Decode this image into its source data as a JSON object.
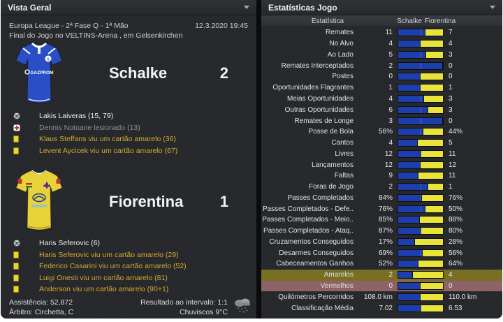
{
  "left_panel": {
    "title": "Vista Geral",
    "competition": "Europa League - 2ª Fase Q - 1ª Mão",
    "datetime": "12.3.2020 19:45",
    "venue_line": "Final do Jogo no VELTINS-Arena , em Gelsenkirchen",
    "home": {
      "name": "Schalke",
      "score": "2",
      "shirt": {
        "body_color": "#2a4fc4",
        "trim_color": "#ffffff",
        "sponsor": "GAZPROM",
        "crest": "schalke-crest"
      },
      "events": [
        {
          "icon": "goal",
          "style": "goal",
          "text": "Lakis Laiveras (15, 79)"
        },
        {
          "icon": "injury",
          "style": "injury",
          "text": "Dennis Notoane lesionado (13)"
        },
        {
          "icon": "yellow-card",
          "style": "card",
          "text": "Klaus Steffans viu um cartão amarelo (36)"
        },
        {
          "icon": "yellow-card",
          "style": "card",
          "text": "Levent Aycicek viu um cartão amarelo (67)"
        }
      ]
    },
    "away": {
      "name": "Fiorentina",
      "score": "1",
      "shirt": {
        "body_color": "#e8d23a",
        "trim_color": "#ffffff",
        "sponsor": "Mazda",
        "crest": "fiorentina-fleur"
      },
      "events": [
        {
          "icon": "goal",
          "style": "goal",
          "text": "Haris Seferovic (6)"
        },
        {
          "icon": "yellow-card",
          "style": "card",
          "text": "Haris Seferovic viu um cartão amarelo (29)"
        },
        {
          "icon": "yellow-card",
          "style": "card",
          "text": "Federico Casarini viu um cartão amarelo (52)"
        },
        {
          "icon": "yellow-card",
          "style": "card",
          "text": "Luigi Onesti viu um cartão amarelo (81)"
        },
        {
          "icon": "yellow-card",
          "style": "card",
          "text": "Anderson viu um cartão amarelo (90+1)"
        }
      ]
    },
    "footer": {
      "left_lines": [
        "Assistência: 52,872",
        "Árbitro: Circhetta, C"
      ],
      "right_lines": [
        "Resultado ao intervalo: 1:1",
        "Chuviscos 9°C"
      ],
      "weather_icon": "rain-cloud-icon"
    }
  },
  "right_panel": {
    "title": "Estatísticas Jogo",
    "colors": {
      "home_bar": "#1d3fae",
      "away_bar": "#e9e43a",
      "yellow_row": "#786f22",
      "red_row": "#8e6367"
    },
    "table": {
      "headers": [
        "Estatística",
        "Schalke",
        "Fiorentina"
      ],
      "rows": [
        {
          "label": "Remates",
          "home": "11",
          "away": "7"
        },
        {
          "label": "No Alvo",
          "home": "4",
          "away": "4"
        },
        {
          "label": "Ao Lado",
          "home": "5",
          "away": "3"
        },
        {
          "label": "Remates Interceptados",
          "home": "2",
          "away": "0"
        },
        {
          "label": "Postes",
          "home": "0",
          "away": "0"
        },
        {
          "label": "Oportunidades Flagrantes",
          "home": "1",
          "away": "1"
        },
        {
          "label": "Meias Oportunidades",
          "home": "4",
          "away": "3"
        },
        {
          "label": "Outras Oportunidades",
          "home": "6",
          "away": "3"
        },
        {
          "label": "Remates de Longe",
          "home": "3",
          "away": "0"
        },
        {
          "label": "Posse de Bola",
          "home": "56%",
          "away": "44%"
        },
        {
          "label": "Cantos",
          "home": "4",
          "away": "5"
        },
        {
          "label": "Livres",
          "home": "12",
          "away": "11"
        },
        {
          "label": "Lançamentos",
          "home": "12",
          "away": "12"
        },
        {
          "label": "Faltas",
          "home": "9",
          "away": "11"
        },
        {
          "label": "Foras de Jogo",
          "home": "2",
          "away": "1"
        },
        {
          "label": "Passes Completados",
          "home": "84%",
          "away": "76%"
        },
        {
          "label": "Passes Completados - Defe..",
          "home": "76%",
          "away": "50%"
        },
        {
          "label": "Passes Completados - Meio..",
          "home": "85%",
          "away": "88%"
        },
        {
          "label": "Passes Completados - Ataq..",
          "home": "87%",
          "away": "80%"
        },
        {
          "label": "Cruzamentos Conseguidos",
          "home": "17%",
          "away": "28%"
        },
        {
          "label": "Desarmes Conseguidos",
          "home": "69%",
          "away": "56%"
        },
        {
          "label": "Cabeceamentos Ganhos",
          "home": "52%",
          "away": "64%"
        },
        {
          "label": "Amarelos",
          "home": "2",
          "away": "4",
          "highlight": "yellow"
        },
        {
          "label": "Vermelhos",
          "home": "0",
          "away": "0",
          "highlight": "red"
        },
        {
          "label": "Quilómetros Percorridos",
          "home": "108.0 km",
          "away": "110.0 km"
        },
        {
          "label": "Classificação Média",
          "home": "7.02",
          "away": "6.53"
        }
      ]
    }
  }
}
